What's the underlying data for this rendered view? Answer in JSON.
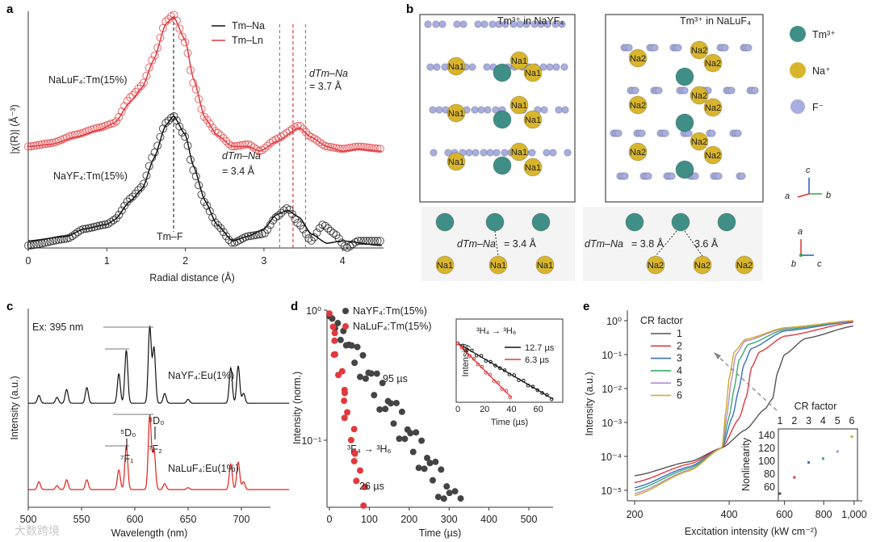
{
  "panel_letters": {
    "a": "a",
    "b": "b",
    "c": "c",
    "d": "d",
    "e": "e"
  },
  "watermark": "大数跨境",
  "chart_data": [
    {
      "panel": "a",
      "type": "line",
      "xlabel": "Radial distance (Å)",
      "ylabel": "|χ(R)| (Å⁻³)",
      "xlim": [
        0,
        4.5
      ],
      "xticks": [
        "0",
        "1",
        "2",
        "3",
        "4"
      ],
      "legend": {
        "placement": "top-center",
        "entries": [
          {
            "label": "Tm–Na",
            "color": "#111111"
          },
          {
            "label": "Tm–Ln",
            "color": "#e0393e"
          }
        ]
      },
      "annotations": {
        "top_sample": "NaLuF₄:Tm(15%)",
        "bottom_sample": "NaYF₄:Tm(15%)",
        "d_top_1": "dTm–Na",
        "d_top_2": "= 3.7 Å",
        "d_bot_1": "dTm–Na",
        "d_bot_2": "= 3.4 Å",
        "peak": "Tm–F"
      },
      "ref_lines": [
        {
          "x": 1.85,
          "color": "#333333"
        },
        {
          "x": 3.2,
          "color": "#888888"
        },
        {
          "x": 3.37,
          "color": "#e0393e"
        },
        {
          "x": 3.53,
          "color": "#888888"
        }
      ],
      "series": [
        {
          "name": "NaLuF4 fit",
          "color": "#e0393e",
          "points": [
            [
              0,
              0.43
            ],
            [
              0.3,
              0.44
            ],
            [
              0.6,
              0.47
            ],
            [
              0.9,
              0.5
            ],
            [
              1.1,
              0.53
            ],
            [
              1.3,
              0.62
            ],
            [
              1.45,
              0.68
            ],
            [
              1.6,
              0.8
            ],
            [
              1.75,
              0.95
            ],
            [
              1.85,
              0.98
            ],
            [
              2.0,
              0.88
            ],
            [
              2.1,
              0.72
            ],
            [
              2.25,
              0.55
            ],
            [
              2.4,
              0.48
            ],
            [
              2.6,
              0.43
            ],
            [
              2.8,
              0.43
            ],
            [
              2.95,
              0.41
            ],
            [
              3.15,
              0.45
            ],
            [
              3.45,
              0.51
            ],
            [
              3.6,
              0.47
            ],
            [
              3.8,
              0.43
            ],
            [
              4.0,
              0.41
            ],
            [
              4.2,
              0.42
            ],
            [
              4.5,
              0.41
            ]
          ]
        },
        {
          "name": "NaLuF4 exp",
          "color": "#e0393e",
          "marker": "circle",
          "points": [
            [
              0,
              0.43
            ],
            [
              0.3,
              0.445
            ],
            [
              0.6,
              0.48
            ],
            [
              0.9,
              0.51
            ],
            [
              1.1,
              0.53
            ],
            [
              1.3,
              0.64
            ],
            [
              1.45,
              0.69
            ],
            [
              1.6,
              0.81
            ],
            [
              1.75,
              0.96
            ],
            [
              1.85,
              0.99
            ],
            [
              2.0,
              0.87
            ],
            [
              2.1,
              0.7
            ],
            [
              2.25,
              0.55
            ],
            [
              2.4,
              0.49
            ],
            [
              2.6,
              0.43
            ],
            [
              2.8,
              0.44
            ],
            [
              2.95,
              0.41
            ],
            [
              3.15,
              0.46
            ],
            [
              3.45,
              0.52
            ],
            [
              3.6,
              0.47
            ],
            [
              3.8,
              0.43
            ],
            [
              4.0,
              0.42
            ],
            [
              4.2,
              0.43
            ],
            [
              4.5,
              0.42
            ]
          ]
        },
        {
          "name": "NaYF4 fit",
          "color": "#111111",
          "points": [
            [
              0,
              0.03
            ],
            [
              0.5,
              0.05
            ],
            [
              0.7,
              0.08
            ],
            [
              1.0,
              0.1
            ],
            [
              1.1,
              0.12
            ],
            [
              1.3,
              0.2
            ],
            [
              1.45,
              0.25
            ],
            [
              1.6,
              0.38
            ],
            [
              1.75,
              0.52
            ],
            [
              1.85,
              0.56
            ],
            [
              2.0,
              0.48
            ],
            [
              2.1,
              0.35
            ],
            [
              2.25,
              0.2
            ],
            [
              2.4,
              0.1
            ],
            [
              2.6,
              0.03
            ],
            [
              2.8,
              0.05
            ],
            [
              3.0,
              0.08
            ],
            [
              3.15,
              0.14
            ],
            [
              3.3,
              0.16
            ],
            [
              3.45,
              0.13
            ],
            [
              3.6,
              0.06
            ],
            [
              3.8,
              0.02
            ],
            [
              4.0,
              0.03
            ],
            [
              4.5,
              0.01
            ]
          ]
        },
        {
          "name": "NaYF4 exp",
          "color": "#111111",
          "marker": "circle",
          "points": [
            [
              0,
              0.01
            ],
            [
              0.5,
              0.04
            ],
            [
              0.7,
              0.08
            ],
            [
              1.0,
              0.1
            ],
            [
              1.1,
              0.12
            ],
            [
              1.3,
              0.21
            ],
            [
              1.45,
              0.26
            ],
            [
              1.6,
              0.4
            ],
            [
              1.75,
              0.53
            ],
            [
              1.85,
              0.56
            ],
            [
              2.0,
              0.47
            ],
            [
              2.1,
              0.33
            ],
            [
              2.25,
              0.19
            ],
            [
              2.4,
              0.1
            ],
            [
              2.6,
              0.02
            ],
            [
              2.8,
              0.05
            ],
            [
              3.0,
              0.06
            ],
            [
              3.15,
              0.13
            ],
            [
              3.3,
              0.17
            ],
            [
              3.45,
              0.1
            ],
            [
              3.6,
              0.03
            ],
            [
              3.75,
              0.1
            ],
            [
              3.9,
              0.06
            ],
            [
              4.05,
              0.0
            ],
            [
              4.2,
              0.03
            ],
            [
              4.5,
              0.03
            ]
          ]
        }
      ]
    },
    {
      "panel": "b",
      "type": "diagram",
      "titles": [
        "Tm³⁺ in NaYF₄",
        "Tm³⁺ in NaLuF₄"
      ],
      "legend": [
        {
          "label": "Tm³⁺",
          "color": "#3f8f86"
        },
        {
          "label": "Na⁺",
          "color": "#d9b52c"
        },
        {
          "label": "F⁻",
          "color": "#a9aee0"
        }
      ],
      "site_labels": {
        "na1": "Na1",
        "na2": "Na2"
      },
      "axes_top": {
        "c": "c",
        "a": "a",
        "b": "b"
      },
      "axes_bottom": {
        "a": "a",
        "b": "b",
        "c": "c"
      },
      "distances": {
        "left_label": "dTm–Na",
        "left_value": "= 3.4 Å",
        "right_label": "dTm–Na",
        "right_value": "= 3.8 Å",
        "right_value2": "3.6 Å"
      }
    },
    {
      "panel": "c",
      "type": "line",
      "xlabel": "Wavelength (nm)",
      "ylabel": "Intensity (a.u.)",
      "xlim": [
        500,
        745
      ],
      "xticks": [
        "500",
        "550",
        "600",
        "650",
        "700"
      ],
      "annotations": {
        "ex": "Ex: 395 nm",
        "top": "NaYF₄:Eu(1%)",
        "bottom": "NaLuF₄:Eu(1%)",
        "t1_upper": "⁵D₀",
        "t1_lower": "⁷F₁",
        "t2_upper": "⁵D₀",
        "t2_lower": "⁷F₂"
      },
      "series": [
        {
          "name": "NaYF4:Eu(1%)",
          "color": "#111111",
          "offset": 0.53,
          "peaks": [
            [
              510,
              0.04
            ],
            [
              527,
              0.03
            ],
            [
              536,
              0.07
            ],
            [
              555,
              0.08
            ],
            [
              585,
              0.15
            ],
            [
              592,
              0.27
            ],
            [
              614,
              0.39
            ],
            [
              618,
              0.28
            ],
            [
              628,
              0.05
            ],
            [
              650,
              0.02
            ],
            [
              690,
              0.18
            ],
            [
              697,
              0.19
            ],
            [
              702,
              0.05
            ]
          ]
        },
        {
          "name": "NaLuF4:Eu(1%)",
          "color": "#e0221b",
          "offset": 0.09,
          "peaks": [
            [
              510,
              0.04
            ],
            [
              527,
              0.02
            ],
            [
              536,
              0.05
            ],
            [
              555,
              0.05
            ],
            [
              585,
              0.1
            ],
            [
              592,
              0.22
            ],
            [
              614,
              0.38
            ],
            [
              618,
              0.2
            ],
            [
              628,
              0.03
            ],
            [
              650,
              0.01
            ],
            [
              690,
              0.13
            ],
            [
              697,
              0.14
            ],
            [
              702,
              0.04
            ]
          ]
        }
      ]
    },
    {
      "panel": "d",
      "type": "scatter",
      "xlabel": "Time (µs)",
      "ylabel": "Intensity (norm.)",
      "xlim": [
        0,
        550
      ],
      "xticks": [
        "0",
        "100",
        "200",
        "300",
        "400",
        "500"
      ],
      "yscale": "log",
      "yticks": [
        "10⁰",
        "10⁻¹"
      ],
      "legend": [
        {
          "label": "NaYF₄:Tm(15%)",
          "color": "#444444"
        },
        {
          "label": "NaLuF₄:Tm(15%)",
          "color": "#e0393e"
        }
      ],
      "annotations": {
        "black_tau": "95 µs",
        "red_tau": "26 µs",
        "transition": "³F₄ → ³H₆"
      },
      "series": [
        {
          "name": "NaYF4:Tm(15%)",
          "color": "#444444",
          "lifetime_us": 95,
          "t_max": 460
        },
        {
          "name": "NaLuF4:Tm(15%)",
          "color": "#e0393e",
          "lifetime_us": 26,
          "t_max": 88
        }
      ],
      "inset": {
        "title": "³H₄ → ³H₆",
        "xlabel": "Time (µs)",
        "ylabel": "Intensity",
        "xticks": [
          "0",
          "20",
          "40",
          "60"
        ],
        "legend": [
          {
            "label": "12.7 µs",
            "color": "#111111",
            "lifetime_us": 12.7,
            "t_max": 71
          },
          {
            "label": "6.3 µs",
            "color": "#e0393e",
            "lifetime_us": 6.3,
            "t_max": 40
          }
        ]
      }
    },
    {
      "panel": "e",
      "type": "line",
      "xlabel": "Excitation intensity (kW cm⁻²)",
      "ylabel": "Intensity (a.u.)",
      "xscale": "log",
      "yscale": "log",
      "xticks": [
        "200",
        "400",
        "600",
        "800",
        "1,000"
      ],
      "yticks": [
        "10⁰",
        "10⁻¹",
        "10⁻²",
        "10⁻³",
        "10⁻⁴",
        "10⁻⁵"
      ],
      "legend_title": "CR factor",
      "series": [
        {
          "name": "1",
          "color": "#555555",
          "points": [
            [
              200,
              2.7e-05
            ],
            [
              300,
              7e-05
            ],
            [
              380,
              0.00018
            ],
            [
              450,
              0.0006
            ],
            [
              520,
              0.0025
            ],
            [
              550,
              0.005
            ],
            [
              570,
              0.03
            ],
            [
              600,
              0.1
            ],
            [
              700,
              0.3
            ],
            [
              1000,
              0.7
            ]
          ]
        },
        {
          "name": "2",
          "color": "#e0393e",
          "points": [
            [
              200,
              1.7e-05
            ],
            [
              300,
              6e-05
            ],
            [
              380,
              0.00018
            ],
            [
              430,
              0.0013
            ],
            [
              455,
              0.006
            ],
            [
              470,
              0.04
            ],
            [
              500,
              0.12
            ],
            [
              600,
              0.35
            ],
            [
              1000,
              0.9
            ]
          ]
        },
        {
          "name": "3",
          "color": "#3a6fc4",
          "points": [
            [
              200,
              1.2e-05
            ],
            [
              300,
              5e-05
            ],
            [
              380,
              0.00018
            ],
            [
              410,
              0.0015
            ],
            [
              430,
              0.01
            ],
            [
              445,
              0.05
            ],
            [
              470,
              0.15
            ],
            [
              600,
              0.5
            ],
            [
              1000,
              0.95
            ]
          ]
        },
        {
          "name": "4",
          "color": "#3aaa6a",
          "points": [
            [
              200,
              1e-05
            ],
            [
              300,
              4.5e-05
            ],
            [
              380,
              0.00018
            ],
            [
              400,
              0.0015
            ],
            [
              415,
              0.01
            ],
            [
              430,
              0.07
            ],
            [
              460,
              0.2
            ],
            [
              600,
              0.55
            ],
            [
              1000,
              1
            ]
          ]
        },
        {
          "name": "5",
          "color": "#b08fd0",
          "points": [
            [
              200,
              8e-06
            ],
            [
              300,
              4e-05
            ],
            [
              380,
              0.00018
            ],
            [
              395,
              0.002
            ],
            [
              405,
              0.015
            ],
            [
              420,
              0.1
            ],
            [
              450,
              0.25
            ],
            [
              600,
              0.6
            ],
            [
              1000,
              1
            ]
          ]
        },
        {
          "name": "6",
          "color": "#d4a62a",
          "points": [
            [
              200,
              7e-06
            ],
            [
              300,
              3.8e-05
            ],
            [
              380,
              0.00018
            ],
            [
              390,
              0.002
            ],
            [
              400,
              0.02
            ],
            [
              415,
              0.12
            ],
            [
              450,
              0.28
            ],
            [
              600,
              0.62
            ],
            [
              1000,
              1
            ]
          ]
        }
      ],
      "inset": {
        "xlabel": "CR factor",
        "ylabel": "Nonlinearity",
        "xticks": [
          "1",
          "2",
          "3",
          "4",
          "5",
          "6"
        ],
        "yticks": [
          "140",
          "120",
          "100",
          "80",
          "60"
        ],
        "points": [
          [
            1,
            50
          ],
          [
            2,
            75
          ],
          [
            3,
            98
          ],
          [
            4,
            104
          ],
          [
            5,
            115
          ],
          [
            6,
            138
          ]
        ]
      }
    }
  ]
}
